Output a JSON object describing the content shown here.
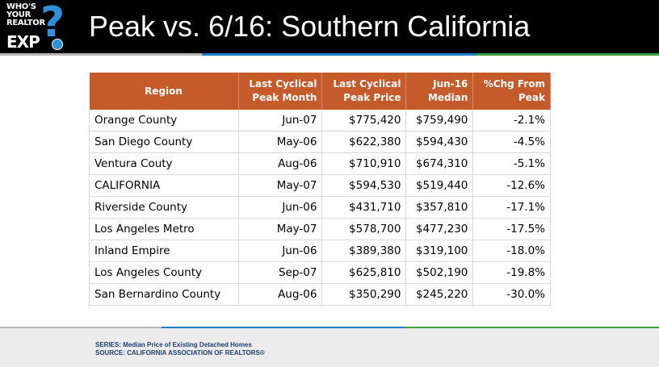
{
  "header": {
    "logo": {
      "line1": "WHO'S",
      "line2": "YOUR",
      "line3": "REALTOR",
      "line4": "EXP",
      "mark": "?"
    },
    "title": "Peak vs. 6/16: Southern California"
  },
  "table": {
    "columns": [
      {
        "line1": "Region",
        "line2": ""
      },
      {
        "line1": "Last Cyclical",
        "line2": "Peak Month"
      },
      {
        "line1": "Last Cyclical",
        "line2": "Peak Price"
      },
      {
        "line1": "Jun-16",
        "line2": "Median"
      },
      {
        "line1": "%Chg From",
        "line2": "Peak"
      }
    ],
    "rows": [
      [
        "Orange County",
        "Jun-07",
        "$775,420",
        "$759,490",
        "-2.1%"
      ],
      [
        "San Diego County",
        "May-06",
        "$622,380",
        "$594,430",
        "-4.5%"
      ],
      [
        "Ventura Couty",
        "Aug-06",
        "$710,910",
        "$674,310",
        "-5.1%"
      ],
      [
        "CALIFORNIA",
        "May-07",
        "$594,530",
        "$519,440",
        "-12.6%"
      ],
      [
        "Riverside County",
        "Jun-06",
        "$431,710",
        "$357,810",
        "-17.1%"
      ],
      [
        "Los Angeles Metro",
        "May-07",
        "$578,700",
        "$477,230",
        "-17.5%"
      ],
      [
        "Inland Empire",
        "Jun-06",
        "$389,380",
        "$319,100",
        "-18.0%"
      ],
      [
        "Los Angeles County",
        "Sep-07",
        "$625,810",
        "$502,190",
        "-19.8%"
      ],
      [
        "San Bernardino County",
        "Aug-06",
        "$350,290",
        "$245,220",
        "-30.0%"
      ]
    ]
  },
  "footer": {
    "series": "SERIES: Median Price of Existing Detached Homes",
    "source": "SOURCE:  CALIFORNIA ASSOCIATION OF REALTORS®"
  },
  "colors": {
    "header_bg": "#000000",
    "table_header_bg": "#c55a2b",
    "accent_blue": "#1e7fc8",
    "accent_green": "#3fa043"
  }
}
